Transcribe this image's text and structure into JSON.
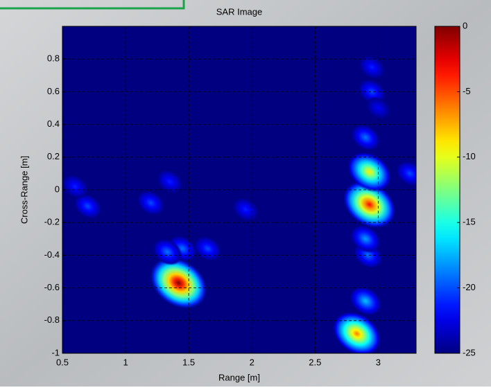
{
  "chart_data": {
    "type": "heatmap",
    "title": "SAR Image",
    "x_label": "Range [m]",
    "y_label": "Cross-Range [m]",
    "xlim": [
      0.5,
      3.3
    ],
    "xticks": [
      0.5,
      1,
      1.5,
      2,
      2.5,
      3
    ],
    "ylim": [
      -1,
      1
    ],
    "yticks": [
      -1,
      -0.8,
      -0.6,
      -0.4,
      -0.2,
      0,
      0.2,
      0.4,
      0.6,
      0.8
    ],
    "colormap": "jet",
    "clim": [
      -25,
      0
    ],
    "cticks": [
      0,
      -5,
      -10,
      -15,
      -20,
      -25
    ],
    "grid": true,
    "x": [
      1.42,
      2.93,
      2.93,
      2.83,
      2.9,
      1.45,
      1.65,
      1.33,
      2.95,
      2.9,
      3.0,
      2.95,
      0.7,
      0.6,
      1.2,
      1.35,
      2.92,
      2.9,
      3.25,
      1.95
    ],
    "y": [
      -0.57,
      -0.09,
      0.11,
      -0.88,
      -0.68,
      -0.36,
      -0.36,
      -0.38,
      0.6,
      0.32,
      0.5,
      0.75,
      -0.1,
      0.02,
      -0.08,
      0.05,
      -0.4,
      -0.3,
      0.1,
      -0.12
    ],
    "values": [
      0,
      -3,
      -9,
      -6,
      -17,
      -19,
      -20,
      -19,
      -20,
      -19,
      -22,
      -21,
      -20,
      -21,
      -20,
      -21,
      -19,
      -18,
      -20,
      -21
    ]
  }
}
